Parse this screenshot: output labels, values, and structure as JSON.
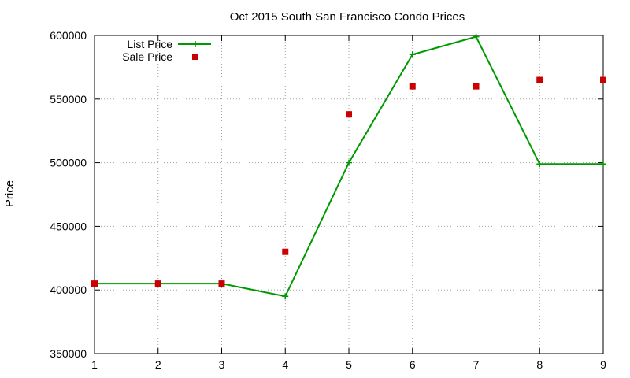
{
  "chart_data": {
    "type": "line",
    "title": "Oct 2015 South San Francisco Condo Prices",
    "xlabel": "",
    "ylabel": "Price",
    "x": [
      1,
      2,
      3,
      4,
      5,
      6,
      7,
      8,
      9
    ],
    "xlim": [
      1,
      9
    ],
    "ylim": [
      350000,
      600000
    ],
    "xticks": [
      "1",
      "2",
      "3",
      "4",
      "5",
      "6",
      "7",
      "8",
      "9"
    ],
    "yticks": [
      "350000",
      "400000",
      "450000",
      "500000",
      "550000",
      "600000"
    ],
    "grid": true,
    "legend_position": "top-left",
    "series": [
      {
        "name": "List Price",
        "style": "linespoints",
        "marker": "plus",
        "color": "#009900",
        "values": [
          405000,
          405000,
          405000,
          395000,
          500000,
          585000,
          599000,
          499000,
          499000
        ]
      },
      {
        "name": "Sale Price",
        "style": "points",
        "marker": "square",
        "color": "#cc0000",
        "values": [
          405000,
          405000,
          405000,
          430000,
          538000,
          560000,
          560000,
          565000,
          565000
        ]
      }
    ]
  }
}
